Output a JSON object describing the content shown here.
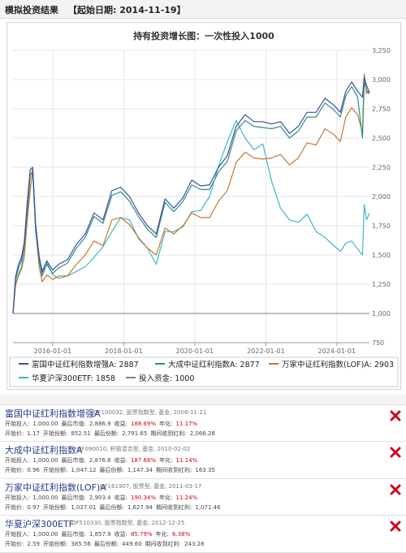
{
  "header": {
    "title": "模拟投资结果",
    "start_date": "【起始日期: 2014-11-19】"
  },
  "chart_data": {
    "type": "line",
    "title": "持有投资增长图：一次性投入1000",
    "x_ticks": [
      "2016-01-01",
      "2018-01-01",
      "2020-01-01",
      "2022-01-01",
      "2024-01-01"
    ],
    "y_ticks": [
      750,
      1000,
      1250,
      1500,
      1750,
      2000,
      2250,
      2500,
      2750,
      3000,
      3250
    ],
    "ylim": [
      750,
      3250
    ],
    "grid": true,
    "legend_position": "bottom",
    "x_dates": [
      "2014-11-19",
      "2014-12-15",
      "2015-01-15",
      "2015-02-15",
      "2015-03-15",
      "2015-04-15",
      "2015-05-15",
      "2015-06-10",
      "2015-07-10",
      "2015-08-15",
      "2015-09-15",
      "2015-11-01",
      "2016-01-01",
      "2016-03-01",
      "2016-06-01",
      "2016-09-01",
      "2016-12-01",
      "2017-03-01",
      "2017-06-01",
      "2017-09-01",
      "2017-12-01",
      "2018-03-01",
      "2018-06-01",
      "2018-09-01",
      "2018-12-01",
      "2019-03-01",
      "2019-06-01",
      "2019-09-01",
      "2019-12-01",
      "2020-03-01",
      "2020-06-01",
      "2020-09-01",
      "2020-12-01",
      "2021-03-01",
      "2021-06-01",
      "2021-09-01",
      "2021-12-01",
      "2022-03-01",
      "2022-06-01",
      "2022-09-01",
      "2022-12-01",
      "2023-03-01",
      "2023-06-01",
      "2023-09-01",
      "2023-12-01",
      "2024-02-05",
      "2024-04-01",
      "2024-06-01",
      "2024-08-01",
      "2024-09-20",
      "2024-10-08",
      "2024-11-01",
      "2024-12-01"
    ],
    "series": [
      {
        "name": "富国中证红利指数增强A",
        "value": "2887",
        "color": "#3a4ea8",
        "values": [
          1000,
          1310,
          1420,
          1480,
          1610,
          1950,
          2230,
          2250,
          1760,
          1490,
          1350,
          1450,
          1370,
          1420,
          1460,
          1590,
          1680,
          1860,
          1800,
          2050,
          2080,
          2000,
          1860,
          1750,
          1680,
          1980,
          1900,
          1990,
          2140,
          2090,
          2100,
          2250,
          2350,
          2600,
          2700,
          2640,
          2640,
          2620,
          2640,
          2540,
          2600,
          2720,
          2720,
          2840,
          2780,
          2720,
          2900,
          2980,
          2900,
          2850,
          3020,
          2950,
          2887
        ]
      },
      {
        "name": "大成中证红利指数A",
        "value": "2877",
        "color": "#2f8f80",
        "values": [
          1000,
          1290,
          1390,
          1450,
          1580,
          1900,
          2180,
          2220,
          1720,
          1460,
          1320,
          1420,
          1340,
          1390,
          1430,
          1560,
          1650,
          1830,
          1770,
          2010,
          2040,
          1960,
          1830,
          1720,
          1650,
          1950,
          1870,
          1960,
          2100,
          2060,
          2060,
          2210,
          2300,
          2560,
          2650,
          2600,
          2590,
          2580,
          2600,
          2500,
          2560,
          2680,
          2680,
          2800,
          2740,
          2680,
          2860,
          2940,
          2850,
          2500,
          2980,
          2910,
          2877
        ]
      },
      {
        "name": "万家中证红利指数(LOF)A",
        "value": "2903",
        "color": "#c8782a",
        "values": [
          1000,
          1240,
          1320,
          1380,
          1480,
          1800,
          2050,
          2240,
          1720,
          1400,
          1270,
          1330,
          1290,
          1320,
          1320,
          1420,
          1500,
          1620,
          1580,
          1800,
          1820,
          1760,
          1650,
          1560,
          1500,
          1730,
          1680,
          1750,
          1860,
          1820,
          1820,
          1960,
          2050,
          2290,
          2380,
          2330,
          2320,
          2330,
          2360,
          2270,
          2330,
          2460,
          2440,
          2580,
          2530,
          2470,
          2680,
          2760,
          2700,
          2550,
          3050,
          2880,
          2903
        ]
      },
      {
        "name": "华夏沪深300ETF",
        "value": "1858",
        "color": "#3ab8c8",
        "values": [
          1000,
          1250,
          1340,
          1400,
          1560,
          1870,
          2080,
          2200,
          1700,
          1480,
          1370,
          1440,
          1330,
          1300,
          1320,
          1360,
          1400,
          1480,
          1570,
          1700,
          1820,
          1800,
          1640,
          1560,
          1420,
          1700,
          1700,
          1740,
          1870,
          1880,
          2000,
          2260,
          2470,
          2650,
          2500,
          2400,
          2450,
          2130,
          1900,
          1800,
          1780,
          1850,
          1700,
          1650,
          1580,
          1530,
          1600,
          1620,
          1550,
          1500,
          1930,
          1800,
          1858
        ]
      },
      {
        "name": "投入资金",
        "value": "1000",
        "color": "#808080",
        "values": [
          1000,
          1000,
          1000,
          1000,
          1000,
          1000,
          1000,
          1000,
          1000,
          1000,
          1000,
          1000,
          1000,
          1000,
          1000,
          1000,
          1000,
          1000,
          1000,
          1000,
          1000,
          1000,
          1000,
          1000,
          1000,
          1000,
          1000,
          1000,
          1000,
          1000,
          1000,
          1000,
          1000,
          1000,
          1000,
          1000,
          1000,
          1000,
          1000,
          1000,
          1000,
          1000,
          1000,
          1000,
          1000,
          1000,
          1000,
          1000,
          1000,
          1000,
          1000,
          1000,
          1000
        ]
      }
    ]
  },
  "funds": [
    {
      "name": "富国中证红利指数增强A",
      "meta": "OF100032, 股票指数型, 基金, 2008-11-21",
      "l_invest": "开始投入:",
      "invest": "1,000.00",
      "l_value": "最后市值:",
      "value": "2,886.9",
      "l_ret": "收益:",
      "ret": "188.69%",
      "l_ann": "年化:",
      "ann": "11.17%",
      "l_nav": "开始价:",
      "nav": "1.17",
      "l_shares0": "开始份额:",
      "shares0": "852.51",
      "l_shares1": "最后份额:",
      "shares1": "2,791.65",
      "l_div": "期间收到红利:",
      "div": "2,066.28"
    },
    {
      "name": "大成中证红利指数A",
      "meta": "OF090010, 积极混合型, 基金, 2010-02-02",
      "l_invest": "开始投入:",
      "invest": "1,000.00",
      "l_value": "最后市值:",
      "value": "2,876.8",
      "l_ret": "收益:",
      "ret": "187.68%",
      "l_ann": "年化:",
      "ann": "11.14%",
      "l_nav": "开始价:",
      "nav": "0.96",
      "l_shares0": "开始份额:",
      "shares0": "1,047.12",
      "l_shares1": "最后份额:",
      "shares1": "1,147.34",
      "l_div": "期间收到红利:",
      "div": "163.35"
    },
    {
      "name": "万家中证红利指数(LOF)A",
      "meta": "OF161907, 股票型, 基金, 2011-03-17",
      "l_invest": "开始投入:",
      "invest": "1,000.00",
      "l_value": "最后市值:",
      "value": "2,903.4",
      "l_ret": "收益:",
      "ret": "190.34%",
      "l_ann": "年化:",
      "ann": "11.24%",
      "l_nav": "开始价:",
      "nav": "0.97",
      "l_shares0": "开始份额:",
      "shares0": "1,027.01",
      "l_shares1": "最后份额:",
      "shares1": "1,627.94",
      "l_div": "期间收到红利:",
      "div": "1,071.46"
    },
    {
      "name": "华夏沪深300ETF",
      "meta": "OF510330, 股票指数型, 基金, 2012-12-25",
      "l_invest": "开始投入:",
      "invest": "1,000.00",
      "l_value": "最后市值:",
      "value": "1,857.9",
      "l_ret": "收益:",
      "ret": "85.79%",
      "l_ann": "年化:",
      "ann": "6.38%",
      "l_nav": "开始价:",
      "nav": "2.59",
      "l_shares0": "开始份额:",
      "shares0": "385.56",
      "l_shares1": "最后份额:",
      "shares1": "449.60",
      "l_div": "期间收到红利:",
      "div": "243.28"
    }
  ],
  "colors": {
    "delete_icon": "#d0021b",
    "fund_name": "#1f3b8a",
    "emphasis": "#d0021b"
  },
  "icons": {
    "delete": "close-x-icon"
  }
}
